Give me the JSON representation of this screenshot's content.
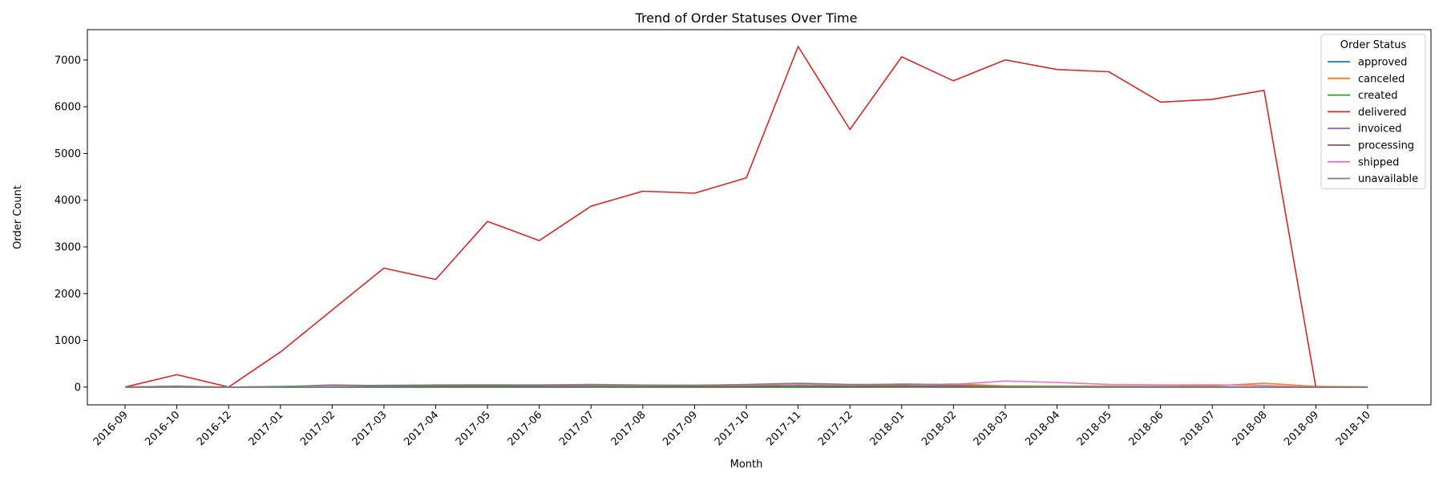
{
  "chart_data": {
    "type": "line",
    "title": "Trend of Order Statuses Over Time",
    "xlabel": "Month",
    "ylabel": "Order Count",
    "categories": [
      "2016-09",
      "2016-10",
      "2016-12",
      "2017-01",
      "2017-02",
      "2017-03",
      "2017-04",
      "2017-05",
      "2017-06",
      "2017-07",
      "2017-08",
      "2017-09",
      "2017-10",
      "2017-11",
      "2017-12",
      "2018-01",
      "2018-02",
      "2018-03",
      "2018-04",
      "2018-05",
      "2018-06",
      "2018-07",
      "2018-08",
      "2018-09",
      "2018-10"
    ],
    "ylim": [
      -380,
      7650
    ],
    "yticks": [
      0,
      1000,
      2000,
      3000,
      4000,
      5000,
      6000,
      7000
    ],
    "grid": false,
    "legend": {
      "title": "Order Status",
      "placement": "top-right"
    },
    "series": [
      {
        "name": "approved",
        "color": "#1f77b4",
        "values": [
          0,
          0,
          0,
          0,
          0,
          0,
          0,
          0,
          0,
          0,
          0,
          0,
          0,
          0,
          0,
          0,
          0,
          0,
          0,
          0,
          0,
          0,
          0,
          0,
          0
        ]
      },
      {
        "name": "canceled",
        "color": "#ff7f0e",
        "values": [
          2,
          24,
          0,
          3,
          17,
          33,
          18,
          29,
          16,
          28,
          25,
          18,
          27,
          21,
          14,
          44,
          68,
          25,
          20,
          20,
          14,
          25,
          84,
          15,
          4
        ]
      },
      {
        "name": "created",
        "color": "#2ca02c",
        "values": [
          0,
          0,
          0,
          0,
          0,
          0,
          0,
          0,
          0,
          0,
          0,
          0,
          0,
          0,
          0,
          3,
          1,
          0,
          0,
          0,
          0,
          0,
          0,
          0,
          0
        ]
      },
      {
        "name": "delivered",
        "color": "#d62728",
        "values": [
          1,
          265,
          1,
          750,
          1650,
          2546,
          2303,
          3546,
          3135,
          3872,
          4193,
          4150,
          4478,
          7289,
          5513,
          7069,
          6555,
          7003,
          6798,
          6749,
          6099,
          6159,
          6351,
          0,
          0
        ]
      },
      {
        "name": "invoiced",
        "color": "#9467bd",
        "values": [
          0,
          18,
          0,
          12,
          9,
          12,
          14,
          16,
          9,
          14,
          19,
          16,
          13,
          30,
          15,
          21,
          14,
          11,
          9,
          5,
          4,
          3,
          2,
          0,
          0
        ]
      },
      {
        "name": "processing",
        "color": "#8c564b",
        "values": [
          0,
          2,
          0,
          10,
          24,
          24,
          22,
          25,
          19,
          25,
          17,
          10,
          17,
          27,
          16,
          12,
          10,
          8,
          4,
          4,
          3,
          2,
          2,
          0,
          0
        ]
      },
      {
        "name": "shipped",
        "color": "#e377c2",
        "values": [
          0,
          8,
          0,
          16,
          21,
          41,
          44,
          49,
          41,
          43,
          35,
          39,
          40,
          65,
          39,
          67,
          56,
          130,
          98,
          56,
          45,
          48,
          37,
          0,
          0
        ]
      },
      {
        "name": "unavailable",
        "color": "#7f7f7f",
        "values": [
          0,
          7,
          0,
          10,
          45,
          32,
          46,
          45,
          46,
          58,
          44,
          38,
          56,
          84,
          56,
          59,
          38,
          15,
          5,
          2,
          1,
          1,
          1,
          0,
          0
        ]
      }
    ]
  }
}
